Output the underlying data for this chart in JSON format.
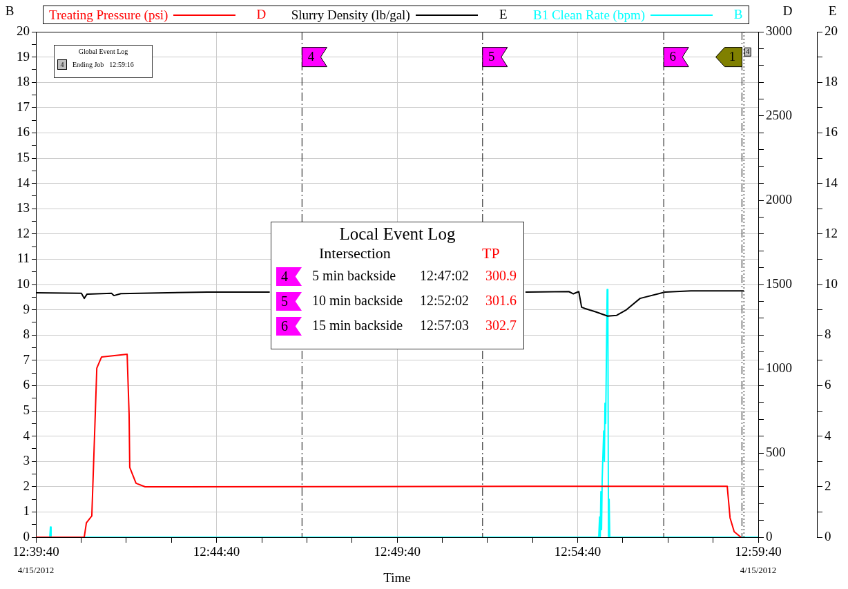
{
  "chart_data": {
    "type": "line",
    "xlabel": "Time",
    "ylabel": "B",
    "y2label": "D",
    "y3label": "E",
    "legend": "top",
    "grid": true,
    "xlim": [
      12.6611,
      12.9944
    ],
    "xticks": [
      {
        "value": 12.6611,
        "label": "12:39:40"
      },
      {
        "value": 12.6819,
        "label": null
      },
      {
        "value": 12.7028,
        "label": null
      },
      {
        "value": 12.7236,
        "label": null
      },
      {
        "value": 12.7444,
        "label": "12:44:40"
      },
      {
        "value": 12.7653,
        "label": null
      },
      {
        "value": 12.7861,
        "label": null
      },
      {
        "value": 12.8069,
        "label": null
      },
      {
        "value": 12.8278,
        "label": "12:49:40"
      },
      {
        "value": 12.8486,
        "label": null
      },
      {
        "value": 12.8694,
        "label": null
      },
      {
        "value": 12.8903,
        "label": null
      },
      {
        "value": 12.9111,
        "label": "12:54:40"
      },
      {
        "value": 12.9319,
        "label": null
      },
      {
        "value": 12.9528,
        "label": null
      },
      {
        "value": 12.9736,
        "label": null
      },
      {
        "value": 12.9944,
        "label": "12:59:40"
      }
    ],
    "ylim": [
      0,
      20
    ],
    "yticks": [
      0,
      {
        "value": 0.5,
        "label": null
      },
      1,
      {
        "value": 1.5,
        "label": null
      },
      2,
      {
        "value": 2.5,
        "label": null
      },
      3,
      {
        "value": 3.5,
        "label": null
      },
      4,
      {
        "value": 4.5,
        "label": null
      },
      5,
      {
        "value": 5.5,
        "label": null
      },
      6,
      {
        "value": 6.5,
        "label": null
      },
      7,
      {
        "value": 7.5,
        "label": null
      },
      8,
      {
        "value": 8.5,
        "label": null
      },
      9,
      {
        "value": 9.5,
        "label": null
      },
      10,
      {
        "value": 10.5,
        "label": null
      },
      11,
      {
        "value": 11.5,
        "label": null
      },
      12,
      {
        "value": 12.5,
        "label": null
      },
      13,
      {
        "value": 13.5,
        "label": null
      },
      14,
      {
        "value": 14.5,
        "label": null
      },
      15,
      {
        "value": 15.5,
        "label": null
      },
      16,
      {
        "value": 16.5,
        "label": null
      },
      17,
      {
        "value": 17.5,
        "label": null
      },
      18,
      {
        "value": 18.5,
        "label": null
      },
      19,
      {
        "value": 19.5,
        "label": null
      },
      20
    ],
    "y2lim": [
      0,
      3000
    ],
    "y2ticks": [
      0,
      {
        "value": 100,
        "label": null
      },
      {
        "value": 200,
        "label": null
      },
      {
        "value": 300,
        "label": null
      },
      {
        "value": 400,
        "label": null
      },
      500,
      {
        "value": 600,
        "label": null
      },
      {
        "value": 700,
        "label": null
      },
      {
        "value": 800,
        "label": null
      },
      {
        "value": 900,
        "label": null
      },
      1000,
      {
        "value": 1100,
        "label": null
      },
      {
        "value": 1200,
        "label": null
      },
      {
        "value": 1300,
        "label": null
      },
      {
        "value": 1400,
        "label": null
      },
      1500,
      {
        "value": 1600,
        "label": null
      },
      {
        "value": 1700,
        "label": null
      },
      {
        "value": 1800,
        "label": null
      },
      {
        "value": 1900,
        "label": null
      },
      2000,
      {
        "value": 2100,
        "label": null
      },
      {
        "value": 2200,
        "label": null
      },
      {
        "value": 2300,
        "label": null
      },
      {
        "value": 2400,
        "label": null
      },
      2500,
      {
        "value": 2600,
        "label": null
      },
      {
        "value": 2700,
        "label": null
      },
      {
        "value": 2800,
        "label": null
      },
      {
        "value": 2900,
        "label": null
      },
      3000
    ],
    "y3lim": [
      0,
      20
    ],
    "y3ticks": [
      0,
      {
        "value": 1,
        "label": null
      },
      2,
      {
        "value": 3,
        "label": null
      },
      4,
      {
        "value": 5,
        "label": null
      },
      6,
      {
        "value": 7,
        "label": null
      },
      8,
      {
        "value": 9,
        "label": null
      },
      10,
      {
        "value": 11,
        "label": null
      },
      12,
      {
        "value": 13,
        "label": null
      },
      14,
      {
        "value": 15,
        "label": null
      },
      16,
      {
        "value": 17,
        "label": null
      },
      18,
      {
        "value": 19,
        "label": null
      },
      20
    ],
    "series": [
      {
        "name": "Treating Pressure (psi)",
        "color": "#ff0000",
        "axis": "y2",
        "x": [
          12.6611,
          12.6834,
          12.6844,
          12.6869,
          12.6882,
          12.6892,
          12.6914,
          12.7032,
          12.7041,
          12.7044,
          12.7073,
          12.7115,
          12.8,
          12.9,
          12.9801,
          12.9814,
          12.9833,
          12.9864
        ],
        "values": [
          0,
          0,
          86,
          127,
          619,
          1004,
          1070,
          1086,
          730,
          414,
          320,
          299,
          300,
          302,
          302,
          115,
          33,
          0
        ]
      },
      {
        "name": "Slurry Density (lb/gal)",
        "color": "#000000",
        "axis": "y3",
        "x": [
          12.6611,
          12.6821,
          12.6834,
          12.6847,
          12.696,
          12.6971,
          12.7003,
          12.7402,
          12.769,
          12.83,
          12.887,
          12.907,
          12.9091,
          12.9116,
          12.9129,
          12.9144,
          12.9193,
          12.9249,
          12.9291,
          12.9336,
          12.9399,
          12.9514,
          12.9633,
          12.9878
        ],
        "values": [
          9.67,
          9.65,
          9.45,
          9.62,
          9.65,
          9.56,
          9.64,
          9.7,
          9.7,
          null,
          9.7,
          9.72,
          9.63,
          9.72,
          9.1,
          9.05,
          8.92,
          8.75,
          8.78,
          9.0,
          9.45,
          9.7,
          9.75,
          9.75
        ]
      },
      {
        "name": "B1 Clean Rate (bpm)",
        "color": "#00ffff",
        "axis": "y",
        "x": [
          12.6611,
          12.6675,
          12.6678,
          12.6681,
          12.9208,
          12.9212,
          12.9215,
          12.9218,
          12.9221,
          12.9224,
          12.9231,
          12.9234,
          12.9237,
          12.924,
          12.9247,
          12.925,
          12.9253,
          12.9256,
          12.9259,
          12.9944
        ],
        "values": [
          0,
          0,
          0.4,
          0,
          0,
          0.8,
          0,
          1.8,
          0.3,
          2.3,
          4.2,
          3.0,
          5.3,
          4.5,
          9.8,
          9.8,
          0,
          1.5,
          0,
          0
        ]
      }
    ],
    "ref_lines": [
      {
        "axis": "x",
        "value": 12.7839,
        "color": "#333333",
        "line_style": "dashed"
      },
      {
        "axis": "x",
        "value": 12.8672,
        "color": "#333333",
        "line_style": "dashed"
      },
      {
        "axis": "x",
        "value": 12.9508,
        "color": "#333333",
        "line_style": "dashed"
      },
      {
        "axis": "x",
        "value": 12.9869,
        "color": "#333333",
        "line_style": "dashed"
      },
      {
        "axis": "x",
        "value": 12.9878,
        "color": "#333333",
        "line_style": "dotted"
      }
    ],
    "annotations": [
      "4/15/2012",
      "4/15/2012",
      "Global Event Log",
      "4",
      "Ending Job",
      "12:59:16",
      "Local Event Log",
      "Intersection",
      "TP",
      "4",
      "5 min backside",
      "12:47:02",
      "300.9",
      "5",
      "10 min backside",
      "12:52:02",
      "301.6",
      "6",
      "15 min backside",
      "12:57:03",
      "302.7",
      "D",
      "E",
      "B",
      {
        "text": "4",
        "x": 12.7839,
        "y": 19
      },
      {
        "text": "5",
        "x": 12.8672,
        "y": 19
      },
      {
        "text": "6",
        "x": 12.9508,
        "y": 19
      },
      {
        "text": "1",
        "x": 12.9869,
        "y": 19
      },
      {
        "text": "4",
        "x": 12.9878,
        "y": 19.2
      }
    ]
  }
}
